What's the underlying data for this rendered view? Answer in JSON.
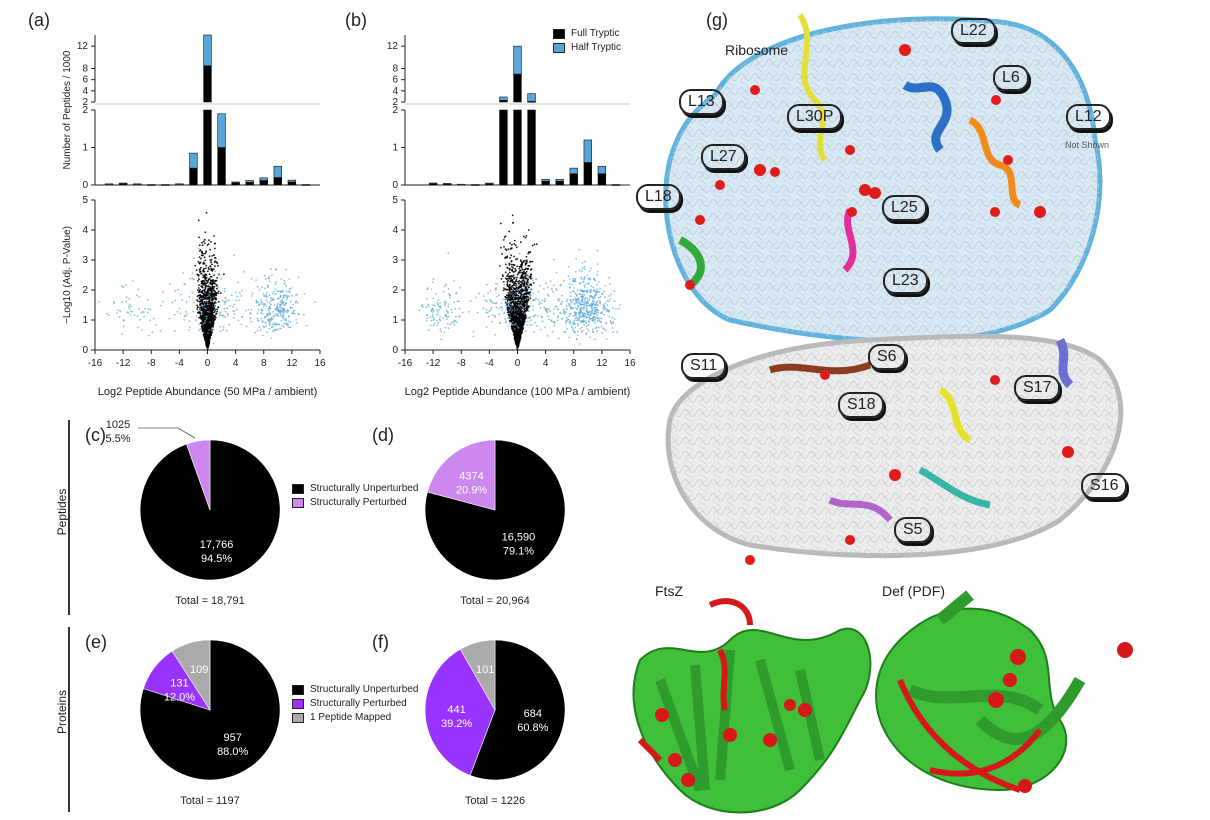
{
  "panel_labels": {
    "a": "(a)",
    "b": "(b)",
    "c": "(c)",
    "d": "(d)",
    "e": "(e)",
    "f": "(f)",
    "g": "(g)"
  },
  "hist_legend": {
    "full": "Full Tryptic",
    "half": "Half Tryptic",
    "full_color": "#000000",
    "half_color": "#5aa6d6"
  },
  "row_labels": {
    "peptides": "Peptides",
    "proteins": "Proteins"
  },
  "pie_legend_peptides": {
    "unperturbed": "Structurally Unperturbed",
    "perturbed": "Structurally Perturbed"
  },
  "pie_legend_proteins": {
    "unperturbed": "Structurally Unperturbed",
    "perturbed": "Structurally Perturbed",
    "mapped": "1 Peptide Mapped"
  },
  "pie_colors": {
    "unperturbed": "#000000",
    "perturbed_peptide": "#cc88ee",
    "perturbed_protein": "#9933ff",
    "mapped": "#aaaaaa"
  },
  "ribosome": {
    "title": "Ribosome",
    "not_shown": "Not Shown",
    "chains": [
      {
        "name": "L22",
        "color": "#f6c8a0"
      },
      {
        "name": "L6",
        "color": "#f07d10"
      },
      {
        "name": "L13",
        "color": "#6cc8cf"
      },
      {
        "name": "L30P",
        "color": "#f2ee7a"
      },
      {
        "name": "L12",
        "color": "#ffffff"
      },
      {
        "name": "L27",
        "color": "#e57870"
      },
      {
        "name": "L18",
        "color": "#7d3a8a"
      },
      {
        "name": "L25",
        "color": "#f6cba8"
      },
      {
        "name": "L23",
        "color": "#3ad8e0"
      },
      {
        "name": "S11",
        "color": "#6f7f86"
      },
      {
        "name": "S6",
        "color": "#2f6a3a"
      },
      {
        "name": "S17",
        "color": "#f1ea2e"
      },
      {
        "name": "S18",
        "color": "#d97a76"
      },
      {
        "name": "S16",
        "color": "#e33fc8"
      },
      {
        "name": "S5",
        "color": "#c9a56a"
      }
    ]
  },
  "structures": {
    "ftsz": "FtsZ",
    "def": "Def (PDF)"
  },
  "chart_data": [
    {
      "type": "bar",
      "panel": "(a)",
      "categories": [
        -14,
        -12,
        -10,
        -8,
        -6,
        -4,
        -2,
        0,
        2,
        4,
        6,
        8,
        10,
        12,
        14
      ],
      "series": [
        {
          "name": "Full Tryptic",
          "values": [
            0.03,
            0.05,
            0.03,
            0.01,
            0.01,
            0.03,
            0.45,
            8.5,
            1.0,
            0.06,
            0.07,
            0.12,
            0.2,
            0.08,
            0.01
          ]
        },
        {
          "name": "Half Tryptic",
          "values": [
            0.0,
            0.0,
            0.0,
            0.0,
            0.0,
            0.0,
            0.4,
            6.5,
            0.9,
            0.02,
            0.05,
            0.07,
            0.3,
            0.05,
            0.0
          ]
        }
      ],
      "ylabel": "Number of Peptides / 1000",
      "yticks_lower": [
        "0",
        "1",
        "2"
      ],
      "yticks_upper": [
        "2",
        "4",
        "6",
        "8",
        "12"
      ]
    },
    {
      "type": "bar",
      "panel": "(b)",
      "categories": [
        -14,
        -12,
        -10,
        -8,
        -6,
        -4,
        -2,
        0,
        2,
        4,
        6,
        8,
        10,
        12,
        14
      ],
      "series": [
        {
          "name": "Full Tryptic",
          "values": [
            0.0,
            0.05,
            0.04,
            0.02,
            0.01,
            0.04,
            2.3,
            7.0,
            2.1,
            0.1,
            0.1,
            0.3,
            0.6,
            0.3,
            0.01
          ]
        },
        {
          "name": "Half Tryptic",
          "values": [
            0.0,
            0.0,
            0.0,
            0.0,
            0.0,
            0.01,
            0.6,
            5.0,
            1.4,
            0.05,
            0.05,
            0.15,
            0.6,
            0.2,
            0.0
          ]
        }
      ],
      "yticks_lower": [
        "0",
        "1",
        "2"
      ],
      "yticks_upper": [
        "2",
        "4",
        "6",
        "8",
        "12"
      ]
    },
    {
      "type": "scatter",
      "panel": "(a)",
      "xlabel": "Log2 Peptide Abundance (50  MPa / ambient)",
      "ylabel": "−Log10 (Adj. P-Value)",
      "xticks": [
        "-16",
        "-12",
        "-8",
        "-4",
        "0",
        "4",
        "8",
        "12",
        "16"
      ],
      "yticks": [
        "0",
        "1",
        "2",
        "3",
        "4",
        "5"
      ],
      "xlim": [
        -16,
        16
      ],
      "ylim": [
        0,
        5
      ],
      "clusters": [
        {
          "cx": 0,
          "sx": 0.6,
          "n": 1200,
          "series": "Full Tryptic"
        },
        {
          "cx": 10,
          "sx": 1.4,
          "n": 260,
          "series": "Half Tryptic"
        },
        {
          "cx": -11,
          "sx": 1.5,
          "n": 50,
          "series": "Half Tryptic"
        },
        {
          "cx": 2,
          "sx": 4,
          "n": 180,
          "series": "Half Tryptic"
        }
      ]
    },
    {
      "type": "scatter",
      "panel": "(b)",
      "xlabel": "Log2 Peptide Abundance (100 MPa / ambient)",
      "xticks": [
        "-16",
        "-12",
        "-8",
        "-4",
        "0",
        "4",
        "8",
        "12",
        "16"
      ],
      "yticks": [
        "0",
        "1",
        "2",
        "3",
        "4",
        "5"
      ],
      "xlim": [
        -16,
        16
      ],
      "ylim": [
        0,
        5
      ],
      "clusters": [
        {
          "cx": 0,
          "sx": 0.8,
          "n": 1300,
          "series": "Full Tryptic"
        },
        {
          "cx": 10,
          "sx": 1.6,
          "n": 450,
          "series": "Half Tryptic"
        },
        {
          "cx": -11,
          "sx": 1.4,
          "n": 110,
          "series": "Half Tryptic"
        },
        {
          "cx": 2,
          "sx": 4.5,
          "n": 260,
          "series": "Half Tryptic"
        }
      ]
    },
    {
      "type": "pie",
      "panel": "(c)",
      "slices": [
        {
          "label": "Structurally Unperturbed",
          "value": 17766,
          "text": "17,766",
          "pct": "94.5%"
        },
        {
          "label": "Structurally Perturbed",
          "value": 1025,
          "text": "1025",
          "pct": "5.5%"
        }
      ],
      "total": "Total = 18,791"
    },
    {
      "type": "pie",
      "panel": "(d)",
      "slices": [
        {
          "label": "Structurally Unperturbed",
          "value": 16590,
          "text": "16,590",
          "pct": "79.1%"
        },
        {
          "label": "Structurally Perturbed",
          "value": 4374,
          "text": "4374",
          "pct": "20.9%"
        }
      ],
      "total": "Total = 20,964"
    },
    {
      "type": "pie",
      "panel": "(e)",
      "slices": [
        {
          "label": "Structurally Unperturbed",
          "value": 957,
          "text": "957",
          "pct": "88.0%"
        },
        {
          "label": "Structurally Perturbed",
          "value": 131,
          "text": "131",
          "pct": "12.0%"
        },
        {
          "label": "1 Peptide Mapped",
          "value": 109,
          "text": "109",
          "pct": ""
        }
      ],
      "total": "Total = 1197"
    },
    {
      "type": "pie",
      "panel": "(f)",
      "slices": [
        {
          "label": "Structurally Unperturbed",
          "value": 684,
          "text": "684",
          "pct": "60.8%"
        },
        {
          "label": "Structurally Perturbed",
          "value": 441,
          "text": "441",
          "pct": "39.2%"
        },
        {
          "label": "1 Peptide Mapped",
          "value": 101,
          "text": "101",
          "pct": ""
        }
      ],
      "total": "Total = 1226"
    }
  ]
}
